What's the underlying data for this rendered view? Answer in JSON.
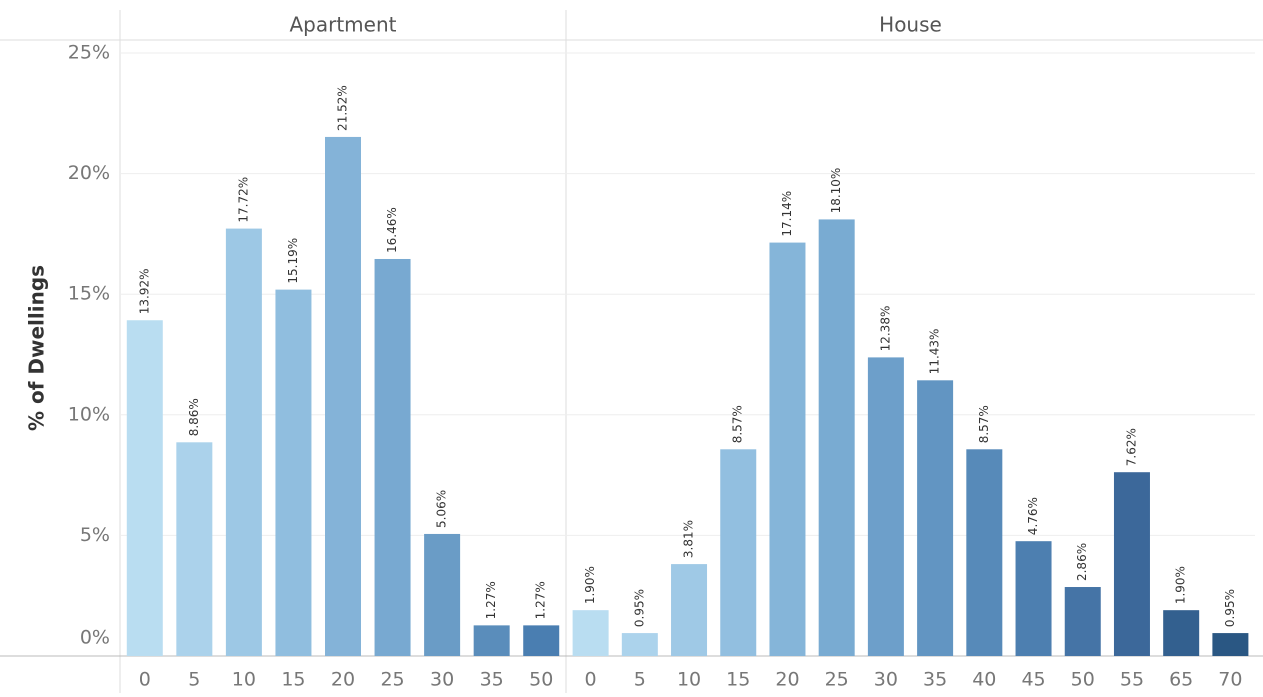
{
  "chart_data": [
    {
      "type": "bar",
      "title": "Apartment",
      "ylabel": "% of Dwellings",
      "categories": [
        "0",
        "5",
        "10",
        "15",
        "20",
        "25",
        "30",
        "35",
        "50"
      ],
      "values": [
        13.92,
        8.86,
        17.72,
        15.19,
        21.52,
        16.46,
        5.06,
        1.27,
        1.27
      ],
      "value_labels": [
        "13.92%",
        "8.86%",
        "17.72%",
        "15.19%",
        "21.52%",
        "16.46%",
        "5.06%",
        "1.27%",
        "1.27%"
      ],
      "colors": [
        "#b9ddf1",
        "#abd2eb",
        "#9dc8e5",
        "#90bedf",
        "#84b3d8",
        "#78a9d1",
        "#6a9cc6",
        "#5a8dbb",
        "#4a7eb1"
      ],
      "ylim": [
        0,
        25
      ],
      "yticks": [
        {
          "value": 0,
          "label": "0%"
        },
        {
          "value": 5,
          "label": "5%"
        },
        {
          "value": 10,
          "label": "10%"
        },
        {
          "value": 15,
          "label": "15%"
        },
        {
          "value": 20,
          "label": "20%"
        },
        {
          "value": 25,
          "label": "25%"
        }
      ],
      "grid": true
    },
    {
      "type": "bar",
      "title": "House",
      "categories": [
        "0",
        "5",
        "10",
        "15",
        "20",
        "25",
        "30",
        "35",
        "40",
        "45",
        "50",
        "55",
        "65",
        "70"
      ],
      "values": [
        1.9,
        0.95,
        3.81,
        8.57,
        17.14,
        18.1,
        12.38,
        11.43,
        8.57,
        4.76,
        2.86,
        7.62,
        1.9,
        0.95
      ],
      "value_labels": [
        "1.90%",
        "0.95%",
        "3.81%",
        "8.57%",
        "17.14%",
        "18.10%",
        "12.38%",
        "11.43%",
        "8.57%",
        "4.76%",
        "2.86%",
        "7.62%",
        "1.90%",
        "0.95%"
      ],
      "colors": [
        "#b9ddf1",
        "#acd3ec",
        "#9fc9e6",
        "#92bfe0",
        "#85b5d9",
        "#79abd2",
        "#6d9fca",
        "#6295c2",
        "#578ab9",
        "#4d7fb0",
        "#4574a6",
        "#3c689a",
        "#33608f",
        "#2a5783"
      ],
      "ylim": [
        0,
        25
      ],
      "grid": true
    }
  ]
}
